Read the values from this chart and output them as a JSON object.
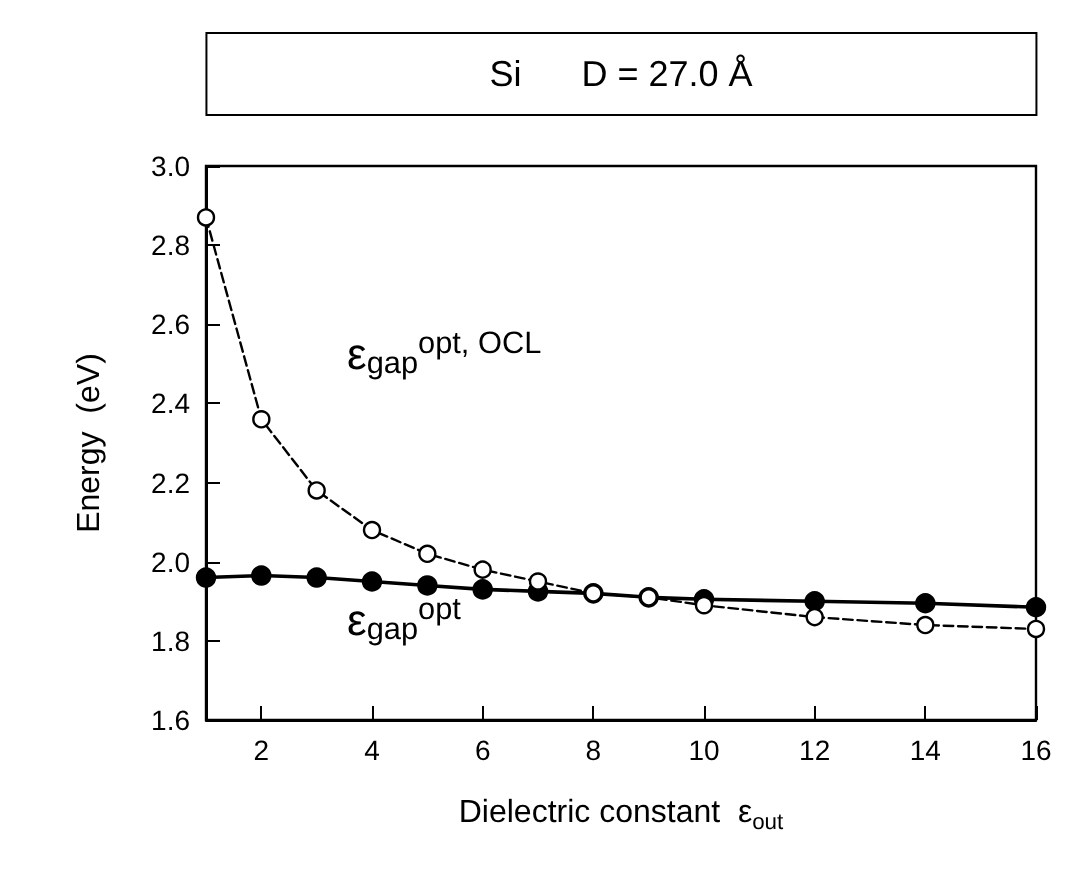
{
  "chart_data": {
    "type": "line",
    "title": "Si      D = 27.0 Å",
    "xlabel": "Dielectric constant  ε$_{out}$",
    "ylabel": "Energy  (eV)",
    "x": [
      1,
      2,
      3,
      4,
      5,
      6,
      7,
      8,
      9,
      10,
      12,
      14,
      16
    ],
    "series": [
      {
        "color": "#000000",
        "line_style": "dashed",
        "values": [
          2.87,
          2.36,
          2.18,
          2.08,
          2.02,
          1.98,
          1.95,
          1.92,
          1.91,
          1.89,
          1.86,
          1.84,
          1.83
        ]
      },
      {
        "color": "#000000",
        "line_style": "solid",
        "values": [
          1.96,
          1.965,
          1.96,
          1.95,
          1.94,
          1.93,
          1.925,
          1.92,
          1.91,
          1.905,
          1.9,
          1.895,
          1.885
        ]
      }
    ],
    "annotations": [
      "ε$_{gap}$$^{opt, OCL}$",
      "ε$_{gap}$$^{opt}$"
    ],
    "xlim": [
      1,
      16
    ],
    "xticks": [
      2,
      4,
      6,
      8,
      10,
      12,
      14,
      16
    ],
    "ylim": [
      1.6,
      3.0
    ],
    "yticks": [
      1.6,
      1.8,
      {
        "value": 2,
        "label": "2.0"
      },
      2.2,
      2.4,
      2.6,
      2.8,
      {
        "value": 3,
        "label": "3.0"
      }
    ],
    "grid": false,
    "marker": "circle"
  }
}
